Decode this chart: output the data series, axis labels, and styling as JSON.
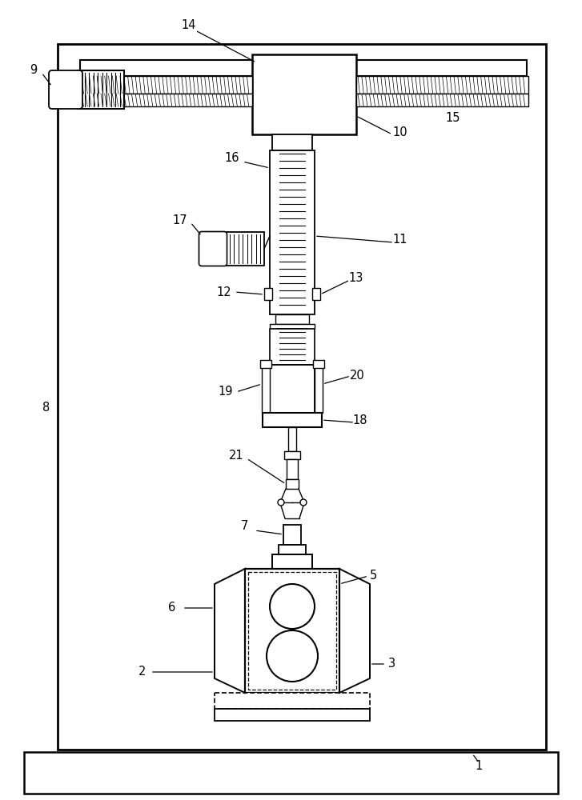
{
  "bg": "#ffffff",
  "lc": "#000000"
}
